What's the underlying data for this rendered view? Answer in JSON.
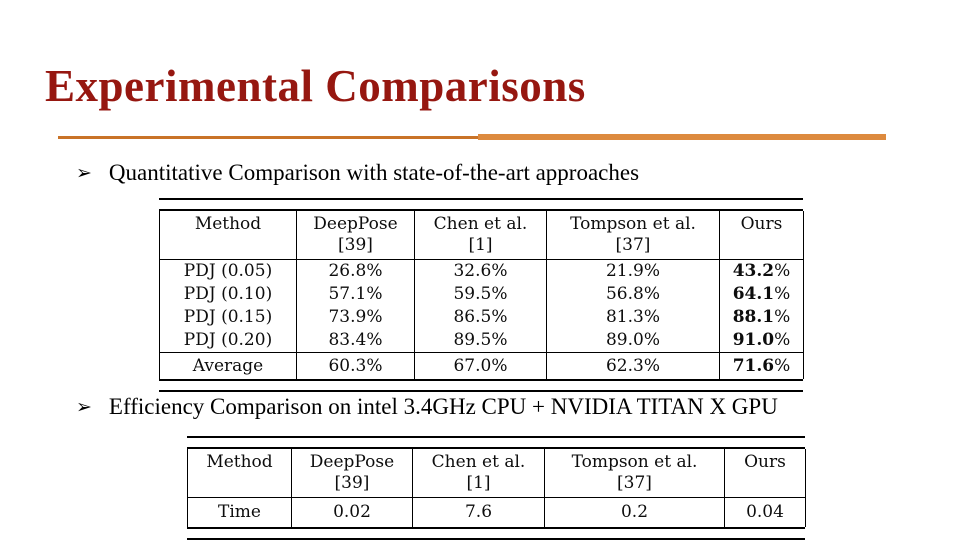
{
  "slide": {
    "title": "Experimental Comparisons",
    "title_color": "#961710",
    "accent_line_thin_color": "#c97328",
    "accent_line_thick_color": "#dd8a3e",
    "bullets": [
      {
        "marker": "➢",
        "text": "Quantitative Comparison with state-of-the-art approaches"
      },
      {
        "marker": "➢",
        "text": "Efficiency Comparison on intel 3.4GHz CPU + NVIDIA TITAN X GPU"
      }
    ]
  },
  "tables": [
    {
      "name": "quantitative-comparison",
      "columns": [
        {
          "title": "Method",
          "ref": ""
        },
        {
          "title": "DeepPose",
          "ref": "[39]"
        },
        {
          "title": "Chen et al.",
          "ref": "[1]"
        },
        {
          "title": "Tompson et al.",
          "ref": "[37]"
        },
        {
          "title": "Ours",
          "ref": ""
        }
      ],
      "rows": [
        {
          "label": "PDJ (0.05)",
          "values": [
            "26.8%",
            "32.6%",
            "21.9%",
            "43.2%"
          ]
        },
        {
          "label": "PDJ (0.10)",
          "values": [
            "57.1%",
            "59.5%",
            "56.8%",
            "64.1%"
          ]
        },
        {
          "label": "PDJ (0.15)",
          "values": [
            "73.9%",
            "86.5%",
            "81.3%",
            "88.1%"
          ]
        },
        {
          "label": "PDJ (0.20)",
          "values": [
            "83.4%",
            "89.5%",
            "89.0%",
            "91.0%"
          ]
        }
      ],
      "footer_row": {
        "label": "Average",
        "values": [
          "60.3%",
          "67.0%",
          "62.3%",
          "71.6%"
        ]
      },
      "bold_last_column": true
    },
    {
      "name": "efficiency-comparison",
      "columns": [
        {
          "title": "Method",
          "ref": ""
        },
        {
          "title": "DeepPose",
          "ref": "[39]"
        },
        {
          "title": "Chen et al.",
          "ref": "[1]"
        },
        {
          "title": "Tompson et al.",
          "ref": "[37]"
        },
        {
          "title": "Ours",
          "ref": ""
        }
      ],
      "rows": [
        {
          "label": "Time",
          "values": [
            "0.02",
            "7.6",
            "0.2",
            "0.04"
          ]
        }
      ],
      "footer_row": null,
      "bold_last_column": false
    }
  ]
}
